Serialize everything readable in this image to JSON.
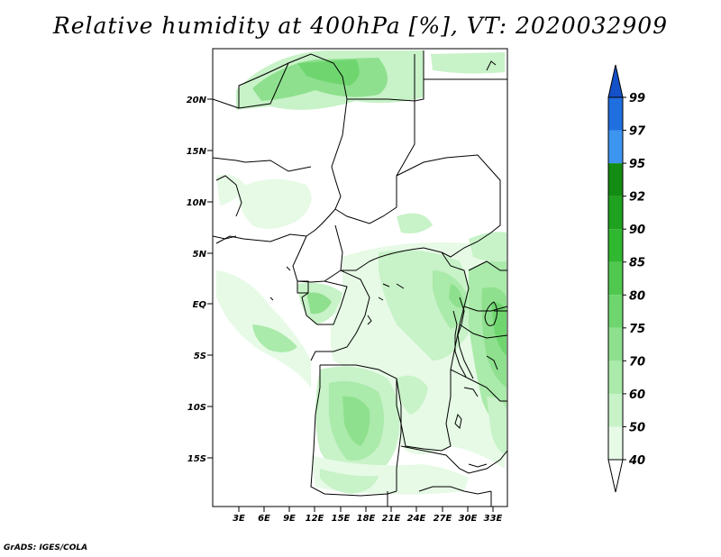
{
  "title": "Relative humidity at 400hPa [%], VT: 2020032909",
  "credit": "GrADS: IGES/COLA",
  "map": {
    "lat_ticks": [
      "20N",
      "15N",
      "10N",
      "5N",
      "EQ",
      "5S",
      "10S",
      "15S"
    ],
    "lon_ticks": [
      "3E",
      "6E",
      "9E",
      "12E",
      "15E",
      "18E",
      "21E",
      "24E",
      "27E",
      "30E",
      "33E"
    ]
  },
  "colorbar": {
    "levels": [
      "40",
      "50",
      "60",
      "70",
      "75",
      "80",
      "85",
      "90",
      "92",
      "95",
      "97",
      "99"
    ],
    "colors": [
      "#ffffff",
      "#e6fae6",
      "#c8f2c8",
      "#aaeaaa",
      "#8ee08e",
      "#6fd66f",
      "#50c850",
      "#30b830",
      "#1fa21f",
      "#128c12",
      "#3c96f0",
      "#1f6fe0",
      "#1450c8"
    ]
  }
}
